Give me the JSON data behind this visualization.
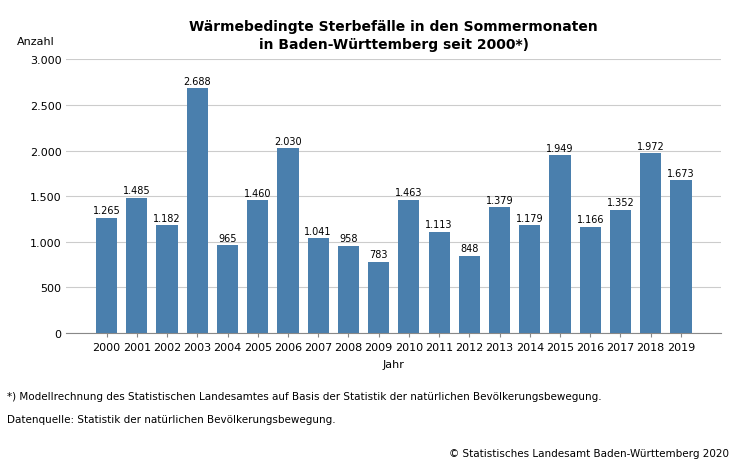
{
  "title_line1": "Wärmebedingte Sterbefälle in den Sommermonaten",
  "title_line2": "in Baden-Württemberg seit 2000*)",
  "ylabel": "Anzahl",
  "xlabel": "Jahr",
  "years": [
    2000,
    2001,
    2002,
    2003,
    2004,
    2005,
    2006,
    2007,
    2008,
    2009,
    2010,
    2011,
    2012,
    2013,
    2014,
    2015,
    2016,
    2017,
    2018,
    2019
  ],
  "values": [
    1265,
    1485,
    1182,
    2688,
    965,
    1460,
    2030,
    1041,
    958,
    783,
    1463,
    1113,
    848,
    1379,
    1179,
    1949,
    1166,
    1352,
    1972,
    1673
  ],
  "bar_color": "#4a7fad",
  "background_color": "#ffffff",
  "ylim": [
    0,
    3000
  ],
  "yticks": [
    0,
    500,
    1000,
    1500,
    2000,
    2500,
    3000
  ],
  "ytick_labels": [
    "0",
    "500",
    "1.000",
    "1.500",
    "2.000",
    "2.500",
    "3.000"
  ],
  "footnote1": "*) Modellrechnung des Statistischen Landesamtes auf Basis der Statistik der natürlichen Bevölkerungsbewegung.",
  "footnote2": "Datenquelle: Statistik der natürlichen Bevölkerungsbewegung.",
  "copyright": "© Statistisches Landesamt Baden-Württemberg 2020",
  "grid_color": "#cccccc",
  "title_fontsize": 10,
  "label_fontsize": 8,
  "tick_fontsize": 8,
  "bar_label_fontsize": 7,
  "footnote_fontsize": 7.5,
  "copyright_fontsize": 7.5
}
